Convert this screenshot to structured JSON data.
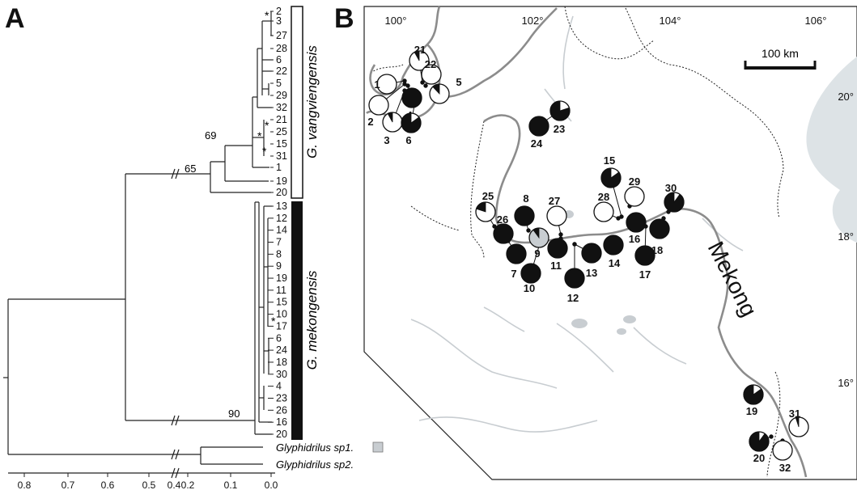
{
  "panel_a": {
    "label": "A",
    "species": {
      "vangviengensis": "G. vangviengensis",
      "mekongensis": "G. mekongensis"
    },
    "vang_tips": [
      "2",
      "3",
      "27",
      "28",
      "6",
      "22",
      "5",
      "29",
      "32",
      "21",
      "25",
      "15",
      "31",
      "1",
      "19",
      "20"
    ],
    "mek_tips": [
      "13",
      "12",
      "14",
      "7",
      "8",
      "9",
      "19",
      "11",
      "15",
      "10",
      "17",
      "6",
      "24",
      "18",
      "30",
      "4",
      "23",
      "26",
      "16",
      "20"
    ],
    "outgroups": [
      "Glyphidrilus sp1.",
      "Glyphidrilus sp2."
    ],
    "support": {
      "vang_inner": "69",
      "vang_clade": "65",
      "mek_clade": "90"
    },
    "star": "*",
    "axis_ticks": [
      "0.8",
      "0.7",
      "0.6",
      "0.5",
      "0.4",
      "0.2",
      "0.1",
      "0.0"
    ]
  },
  "panel_b": {
    "label": "B",
    "lon_ticks": [
      "100°",
      "102°",
      "104°",
      "106°"
    ],
    "lat_ticks": [
      "20°",
      "18°",
      "16°"
    ],
    "scale_label": "100 km",
    "river_label": "Mekong",
    "sites": [
      {
        "n": "1",
        "type": "white",
        "frac": 0
      },
      {
        "n": "2",
        "type": "white",
        "frac": 0
      },
      {
        "n": "3",
        "type": "white",
        "frac": 0.08
      },
      {
        "n": "4",
        "type": "black",
        "frac": 1
      },
      {
        "n": "5",
        "type": "white",
        "frac": 0.12
      },
      {
        "n": "6",
        "type": "mix",
        "frac": 0.85
      },
      {
        "n": "7",
        "type": "black",
        "frac": 1
      },
      {
        "n": "8",
        "type": "black",
        "frac": 1
      },
      {
        "n": "9",
        "type": "gray",
        "frac": 0.1
      },
      {
        "n": "10",
        "type": "black",
        "frac": 1
      },
      {
        "n": "11",
        "type": "black",
        "frac": 1
      },
      {
        "n": "12",
        "type": "black",
        "frac": 1
      },
      {
        "n": "13",
        "type": "black",
        "frac": 1
      },
      {
        "n": "14",
        "type": "black",
        "frac": 1
      },
      {
        "n": "15",
        "type": "mix",
        "frac": 0.85
      },
      {
        "n": "16",
        "type": "black",
        "frac": 1
      },
      {
        "n": "17",
        "type": "black",
        "frac": 1
      },
      {
        "n": "18",
        "type": "black",
        "frac": 1
      },
      {
        "n": "19",
        "type": "mix",
        "frac": 0.85
      },
      {
        "n": "20",
        "type": "mix",
        "frac": 0.9
      },
      {
        "n": "21",
        "type": "white",
        "frac": 0.08
      },
      {
        "n": "22",
        "type": "white",
        "frac": 0
      },
      {
        "n": "23",
        "type": "mix",
        "frac": 0.8
      },
      {
        "n": "24",
        "type": "black",
        "frac": 1
      },
      {
        "n": "25",
        "type": "mix",
        "frac": 0.2
      },
      {
        "n": "26",
        "type": "black",
        "frac": 1
      },
      {
        "n": "27",
        "type": "white",
        "frac": 0
      },
      {
        "n": "28",
        "type": "white",
        "frac": 0
      },
      {
        "n": "29",
        "type": "white",
        "frac": 0
      },
      {
        "n": "30",
        "type": "mix",
        "frac": 0.9
      },
      {
        "n": "31",
        "type": "white",
        "frac": 0.05
      },
      {
        "n": "32",
        "type": "white",
        "frac": 0
      }
    ]
  },
  "colors": {
    "black": "#111111",
    "white": "#ffffff",
    "gray": "#c8cdd1",
    "river": "#8c8c8c",
    "water": "#dde3e6"
  }
}
